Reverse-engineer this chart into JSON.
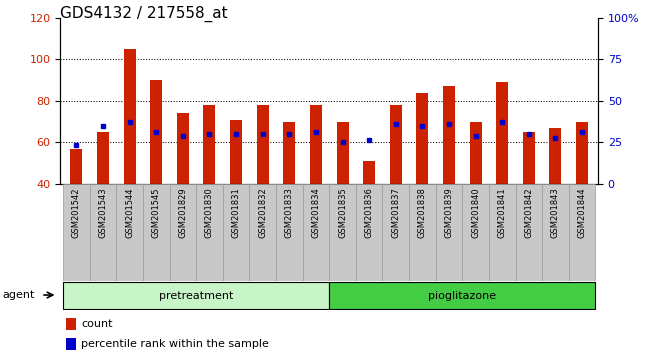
{
  "title": "GDS4132 / 217558_at",
  "categories": [
    "GSM201542",
    "GSM201543",
    "GSM201544",
    "GSM201545",
    "GSM201829",
    "GSM201830",
    "GSM201831",
    "GSM201832",
    "GSM201833",
    "GSM201834",
    "GSM201835",
    "GSM201836",
    "GSM201837",
    "GSM201838",
    "GSM201839",
    "GSM201840",
    "GSM201841",
    "GSM201842",
    "GSM201843",
    "GSM201844"
  ],
  "bar_values": [
    57,
    65,
    105,
    90,
    74,
    78,
    71,
    78,
    70,
    78,
    70,
    51,
    78,
    84,
    87,
    70,
    89,
    65,
    67,
    70
  ],
  "blue_values": [
    59,
    68,
    70,
    65,
    63,
    64,
    64,
    64,
    64,
    65,
    60,
    61,
    69,
    68,
    69,
    63,
    70,
    64,
    62,
    65
  ],
  "groups": [
    {
      "name": "pretreatment",
      "start": 0,
      "end": 10,
      "color": "#c8f5c8"
    },
    {
      "name": "pioglitazone",
      "start": 10,
      "end": 20,
      "color": "#44cc44"
    }
  ],
  "ylim_left": [
    40,
    120
  ],
  "ylim_right": [
    0,
    100
  ],
  "yticks_left": [
    40,
    60,
    80,
    100,
    120
  ],
  "yticks_right": [
    0,
    25,
    50,
    75,
    100
  ],
  "yticklabels_right": [
    "0",
    "25",
    "50",
    "75",
    "100%"
  ],
  "bar_color": "#cc2200",
  "dot_color": "#0000cc",
  "tick_bg_color": "#c8c8c8",
  "tick_border_color": "#999999",
  "agent_label": "agent",
  "legend_count": "count",
  "legend_pct": "percentile rank within the sample",
  "title_fontsize": 11,
  "tick_fontsize": 8,
  "label_fontsize": 6,
  "gridlines": [
    60,
    80,
    100
  ]
}
